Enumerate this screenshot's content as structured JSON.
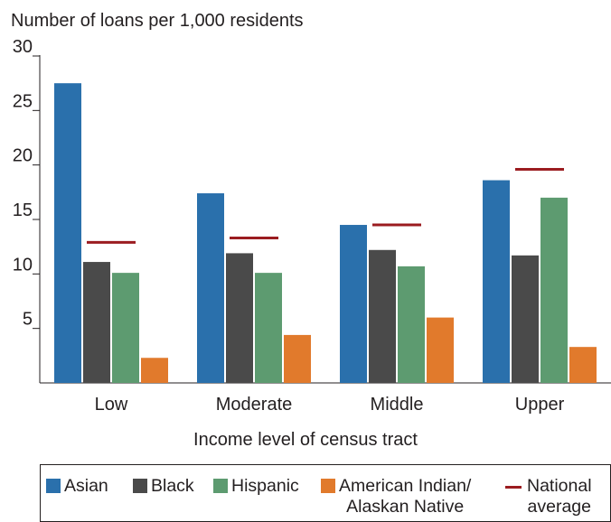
{
  "chart_data": {
    "type": "bar",
    "ylabel": "Number of loans per 1,000 residents",
    "xlabel": "Income level of census tract",
    "categories": [
      "Low",
      "Moderate",
      "Middle",
      "Upper"
    ],
    "ylim": [
      0,
      30
    ],
    "yticks": [
      "5",
      "10",
      "15",
      "20",
      "25",
      "30"
    ],
    "series": [
      {
        "name": "Asian",
        "color": "#2a70ac",
        "values": [
          27.5,
          17.4,
          14.5,
          18.6
        ]
      },
      {
        "name": "Black",
        "color": "#4a4a4a",
        "values": [
          11.1,
          11.9,
          12.2,
          11.7
        ]
      },
      {
        "name": "Hispanic",
        "color": "#5d9b70",
        "values": [
          10.1,
          10.1,
          10.7,
          17.0
        ]
      },
      {
        "name": "American Indian/\nAlaskan Native",
        "color": "#e17a2c",
        "values": [
          2.3,
          4.4,
          6.0,
          3.3
        ]
      }
    ],
    "reference": {
      "name": "National\naverage",
      "color": "#9b1c20",
      "values": [
        12.9,
        13.3,
        14.5,
        19.6
      ]
    },
    "grid": false,
    "legend_position": "bottom"
  }
}
